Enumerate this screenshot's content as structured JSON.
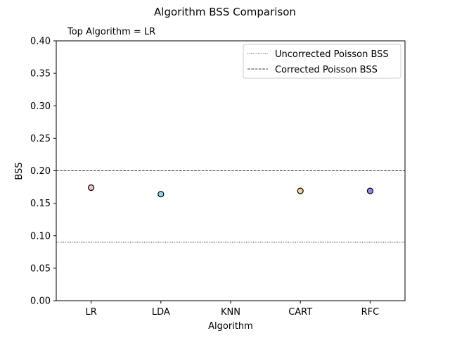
{
  "chart_data": {
    "type": "scatter",
    "title": "Algorithm BSS Comparison",
    "subtitle": "Top Algorithm = LR",
    "xlabel": "Algorithm",
    "ylabel": "BSS",
    "categories": [
      "LR",
      "LDA",
      "KNN",
      "CART",
      "RFC"
    ],
    "points": [
      {
        "category": "LR",
        "value": 0.174,
        "color": "#f6c0c4"
      },
      {
        "category": "LDA",
        "value": 0.164,
        "color": "#8fd3ea"
      },
      {
        "category": "CART",
        "value": 0.169,
        "color": "#f9cfa1"
      },
      {
        "category": "RFC",
        "value": 0.169,
        "color": "#9b86e3"
      }
    ],
    "ylim": [
      0.0,
      0.4
    ],
    "yticks": [
      "0.00",
      "0.05",
      "0.10",
      "0.15",
      "0.20",
      "0.25",
      "0.30",
      "0.35",
      "0.40"
    ],
    "reference_lines": [
      {
        "name": "Uncorrected Poisson BSS",
        "value": 0.09,
        "style": "dotted"
      },
      {
        "name": "Corrected Poisson BSS",
        "value": 0.2,
        "style": "dashed"
      }
    ],
    "legend_position": "top-right",
    "grid": false
  }
}
